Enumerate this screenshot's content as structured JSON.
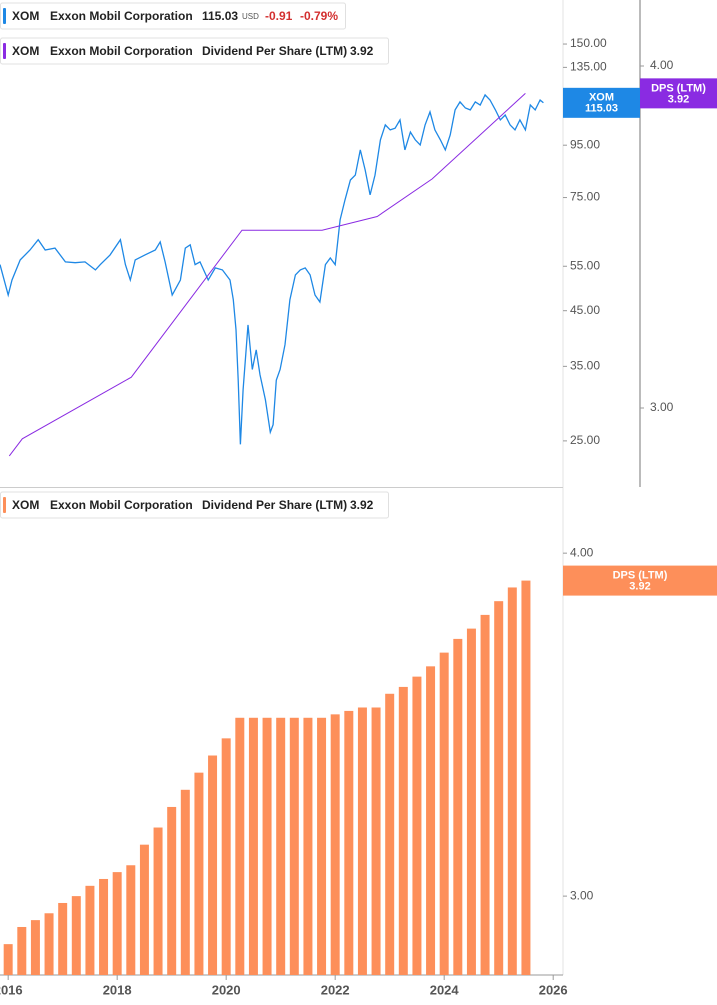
{
  "chart_data": [
    {
      "type": "line",
      "log_y": true,
      "xlim": [
        2015.85,
        2026.18
      ],
      "ylim": [
        20.3,
        183
      ],
      "yticks": [
        {
          "value": 25,
          "label": "25.00"
        },
        {
          "value": 35,
          "label": "35.00"
        },
        {
          "value": 45,
          "label": "45.00"
        },
        {
          "value": 55,
          "label": "55.00"
        },
        {
          "value": 75,
          "label": "75.00"
        },
        {
          "value": 95,
          "label": "95.00"
        },
        {
          "value": 135,
          "label": "135.00"
        },
        {
          "value": 150,
          "label": "150.00"
        }
      ],
      "y2lim": [
        2.769,
        4.193
      ],
      "y2ticks": [
        {
          "value": 3,
          "label": "3.00"
        },
        {
          "value": 4,
          "label": "4.00"
        }
      ],
      "legend": [
        {
          "ticker": "XOM",
          "company": "Exxon Mobil Corporation",
          "currency": "USD",
          "change": "-0.91",
          "change_pct": "-0.79%"
        },
        {
          "ticker": "XOM",
          "company": "Exxon Mobil Corporation"
        }
      ],
      "series": [
        {
          "name": "XOM",
          "color": "#1e88e5",
          "x": [
            2015.85,
            2016.0,
            2016.07,
            2016.22,
            2016.4,
            2016.55,
            2016.68,
            2016.86,
            2017.05,
            2017.23,
            2017.41,
            2017.6,
            2017.69,
            2017.87,
            2018.06,
            2018.15,
            2018.24,
            2018.33,
            2018.51,
            2018.7,
            2018.79,
            2018.88,
            2019.01,
            2019.16,
            2019.25,
            2019.34,
            2019.43,
            2019.52,
            2019.67,
            2019.8,
            2019.93,
            2020.07,
            2020.13,
            2020.18,
            2020.22,
            2020.26,
            2020.31,
            2020.4,
            2020.48,
            2020.55,
            2020.62,
            2020.72,
            2020.81,
            2020.86,
            2020.92,
            2020.99,
            2021.08,
            2021.17,
            2021.27,
            2021.36,
            2021.45,
            2021.54,
            2021.63,
            2021.72,
            2021.82,
            2021.91,
            2022.0,
            2022.09,
            2022.18,
            2022.28,
            2022.37,
            2022.46,
            2022.55,
            2022.64,
            2022.73,
            2022.83,
            2022.92,
            2023.01,
            2023.1,
            2023.19,
            2023.28,
            2023.38,
            2023.47,
            2023.56,
            2023.65,
            2023.74,
            2023.83,
            2023.93,
            2024.02,
            2024.11,
            2024.2,
            2024.29,
            2024.39,
            2024.48,
            2024.57,
            2024.66,
            2024.75,
            2024.84,
            2024.94,
            2025.03,
            2025.12,
            2025.21,
            2025.3,
            2025.39,
            2025.49,
            2025.58,
            2025.67,
            2025.76,
            2025.82
          ],
          "values": [
            55.4,
            48.3,
            51.7,
            56.6,
            59.2,
            62,
            59.2,
            59.7,
            56.1,
            55.9,
            56.1,
            54.1,
            55.4,
            57.9,
            62,
            55.4,
            51.7,
            56.6,
            57.9,
            59.2,
            61.4,
            56.1,
            48.3,
            51.7,
            59.7,
            60.6,
            55.4,
            56.1,
            51.7,
            54.6,
            54.1,
            51.7,
            47.3,
            41.3,
            32.9,
            24.6,
            31.5,
            42.2,
            34.5,
            37.7,
            33.7,
            30.1,
            26.0,
            26.9,
            32.9,
            34.5,
            38.6,
            47.3,
            52.9,
            54.1,
            54.6,
            52.9,
            48.3,
            46.8,
            55.4,
            57.1,
            55.4,
            67.8,
            74.2,
            81.2,
            83.0,
            93.0,
            84.9,
            75.9,
            83.0,
            97.3,
            104.1,
            101.8,
            102.6,
            106.5,
            93.0,
            100.8,
            97.3,
            95.1,
            104.1,
            110.4,
            101.8,
            97.3,
            93.0,
            99.5,
            111.4,
            115.5,
            112.4,
            111.4,
            115.5,
            113.9,
            119.2,
            116.5,
            111.4,
            106.5,
            108.9,
            104.1,
            101.8,
            106.5,
            101.8,
            113.9,
            111.4,
            116.5,
            115.03
          ]
        },
        {
          "name": "Dividend Per Share (LTM)",
          "flag_label": "DPS (LTM)",
          "color": "#8a2be2",
          "axis": "y2",
          "x": [
            2016.02,
            2016.26,
            2018.26,
            2020.29,
            2021.76,
            2022.77,
            2023.78,
            2025.49
          ],
          "values": [
            2.86,
            2.91,
            3.09,
            3.52,
            3.52,
            3.56,
            3.67,
            3.92
          ]
        }
      ]
    },
    {
      "type": "bar",
      "xlim": [
        2015.85,
        2026.18
      ],
      "xticks": [
        2016,
        2018,
        2020,
        2022,
        2024,
        2026
      ],
      "ylim": [
        2.77,
        4.19
      ],
      "yticks": [
        {
          "value": 3,
          "label": "3.00"
        },
        {
          "value": 4,
          "label": "4.00"
        }
      ],
      "legend": [
        {
          "ticker": "XOM",
          "company": "Exxon Mobil Corporation"
        }
      ],
      "name": "Dividend Per Share (LTM)",
      "flag_label": "DPS (LTM)",
      "color": "#fd8f5a",
      "x": [
        2016,
        2016.25,
        2016.5,
        2016.75,
        2017,
        2017.25,
        2017.5,
        2017.75,
        2018,
        2018.25,
        2018.5,
        2018.75,
        2019,
        2019.25,
        2019.5,
        2019.75,
        2020,
        2020.25,
        2020.5,
        2020.75,
        2021,
        2021.25,
        2021.5,
        2021.75,
        2022,
        2022.25,
        2022.5,
        2022.75,
        2023,
        2023.25,
        2023.5,
        2023.75,
        2024,
        2024.25,
        2024.5,
        2024.75,
        2025,
        2025.25,
        2025.5
      ],
      "values": [
        2.86,
        2.91,
        2.93,
        2.95,
        2.98,
        3.0,
        3.03,
        3.05,
        3.07,
        3.09,
        3.15,
        3.2,
        3.26,
        3.31,
        3.36,
        3.41,
        3.46,
        3.52,
        3.52,
        3.52,
        3.52,
        3.52,
        3.52,
        3.52,
        3.53,
        3.54,
        3.55,
        3.55,
        3.59,
        3.61,
        3.64,
        3.67,
        3.71,
        3.75,
        3.78,
        3.82,
        3.86,
        3.9,
        3.92
      ]
    }
  ]
}
